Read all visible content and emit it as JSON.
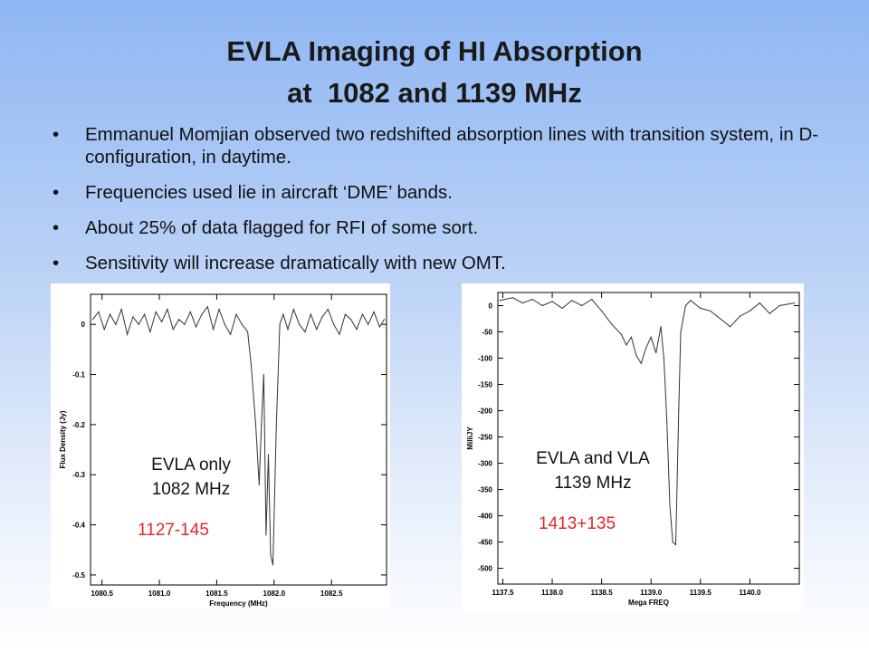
{
  "slide": {
    "title_line1": "EVLA Imaging of HI Absorption",
    "title_line2": "at  1082 and 1139 MHz",
    "bullets": [
      "Emmanuel Momjian observed two redshifted absorption lines with transition system, in D-configuration, in daytime.",
      "Frequencies used lie in aircraft ‘DME’ bands.",
      "About 25% of data flagged for RFI of some sort.",
      "Sensitivity will increase dramatically with new OMT."
    ]
  },
  "chart_data": [
    {
      "type": "line",
      "xlabel": "Frequency (MHz)",
      "ylabel": "Flux Density (Jy)",
      "xlim": [
        1080.4,
        1082.98
      ],
      "ylim": [
        -0.52,
        0.06
      ],
      "xticks": [
        "1080.5",
        "1081.0",
        "1081.5",
        "1082.0",
        "1082.5"
      ],
      "yticks": [
        "0",
        "-0.1",
        "-0.2",
        "-0.3",
        "-0.4",
        "-0.5"
      ],
      "ytick_values": [
        0,
        -0.1,
        -0.2,
        -0.3,
        -0.4,
        -0.5
      ],
      "annotation_lines": [
        "EVLA only",
        "1082 MHz"
      ],
      "source_label": "1127-145",
      "series": [
        {
          "x": [
            1080.42,
            1080.47,
            1080.52,
            1080.57,
            1080.62,
            1080.67,
            1080.72,
            1080.77,
            1080.82,
            1080.87,
            1080.92,
            1080.97,
            1081.02,
            1081.07,
            1081.12,
            1081.17,
            1081.22,
            1081.27,
            1081.32,
            1081.37,
            1081.42,
            1081.47,
            1081.52,
            1081.57,
            1081.62,
            1081.67,
            1081.72,
            1081.77,
            1081.8,
            1081.84,
            1081.87,
            1081.89,
            1081.91,
            1081.93,
            1081.95,
            1081.97,
            1081.99,
            1082.02,
            1082.05,
            1082.08,
            1082.12,
            1082.17,
            1082.22,
            1082.27,
            1082.32,
            1082.37,
            1082.42,
            1082.47,
            1082.52,
            1082.57,
            1082.62,
            1082.67,
            1082.72,
            1082.77,
            1082.82,
            1082.87,
            1082.92,
            1082.96
          ],
          "y": [
            0.01,
            0.025,
            -0.01,
            0.02,
            0.0,
            0.03,
            -0.02,
            0.015,
            0.0,
            0.02,
            -0.015,
            0.025,
            0.005,
            0.03,
            -0.01,
            0.01,
            0.0,
            0.025,
            -0.005,
            0.02,
            0.035,
            -0.01,
            0.03,
            0.0,
            -0.02,
            0.02,
            0.0,
            -0.015,
            -0.08,
            -0.2,
            -0.32,
            -0.2,
            -0.1,
            -0.42,
            -0.26,
            -0.46,
            -0.48,
            -0.2,
            0.0,
            0.02,
            -0.01,
            0.03,
            0.0,
            -0.015,
            0.02,
            -0.01,
            0.015,
            0.03,
            0.0,
            -0.02,
            0.02,
            0.01,
            -0.01,
            0.02,
            0.0,
            0.025,
            -0.005,
            0.01
          ]
        }
      ]
    },
    {
      "type": "line",
      "xlabel": "Mega FREQ",
      "ylabel": "MilliJY",
      "xlim": [
        1137.45,
        1140.5
      ],
      "ylim": [
        -530,
        25
      ],
      "xticks": [
        "1137.5",
        "1138.0",
        "1138.5",
        "1139.0",
        "1139.5",
        "1140.0"
      ],
      "yticks": [
        "0",
        "-50",
        "-100",
        "-150",
        "-200",
        "-250",
        "-300",
        "-350",
        "-400",
        "-450",
        "-500"
      ],
      "ytick_values": [
        0,
        -50,
        -100,
        -150,
        -200,
        -250,
        -300,
        -350,
        -400,
        -450,
        -500
      ],
      "annotation_lines": [
        "EVLA and VLA",
        "1139 MHz"
      ],
      "source_label": "1413+135",
      "series": [
        {
          "x": [
            1137.47,
            1137.6,
            1137.7,
            1137.8,
            1137.9,
            1138.0,
            1138.1,
            1138.2,
            1138.3,
            1138.4,
            1138.5,
            1138.6,
            1138.7,
            1138.75,
            1138.8,
            1138.85,
            1138.9,
            1138.95,
            1139.0,
            1139.05,
            1139.1,
            1139.13,
            1139.16,
            1139.19,
            1139.22,
            1139.25,
            1139.28,
            1139.3,
            1139.35,
            1139.4,
            1139.5,
            1139.6,
            1139.7,
            1139.8,
            1139.9,
            1140.0,
            1140.1,
            1140.2,
            1140.3,
            1140.45
          ],
          "y": [
            10,
            15,
            5,
            12,
            0,
            8,
            -5,
            10,
            0,
            12,
            -10,
            -35,
            -55,
            -75,
            -60,
            -95,
            -110,
            -80,
            -60,
            -90,
            -40,
            -100,
            -220,
            -380,
            -450,
            -455,
            -200,
            -50,
            0,
            10,
            -5,
            -10,
            -25,
            -40,
            -20,
            -10,
            5,
            -15,
            0,
            5
          ]
        }
      ]
    }
  ]
}
